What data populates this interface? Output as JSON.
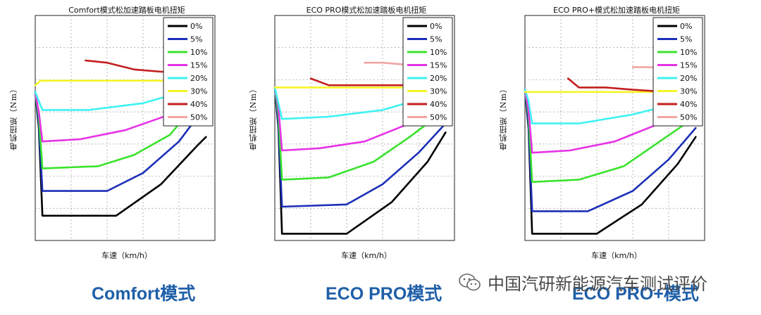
{
  "legend_labels": [
    "0%",
    "5%",
    "10%",
    "15%",
    "20%",
    "30%",
    "40%",
    "50%"
  ],
  "colors": [
    "#000000",
    "#1c2fb8",
    "#39e32c",
    "#e632e6",
    "#3ff2f2",
    "#f5f528",
    "#c41e1e",
    "#f0a6a2"
  ],
  "captions": [
    "Comfort模式",
    "ECO PRO模式",
    "ECO PRO+模式"
  ],
  "watermark": "中国汽研新能源汽车测试评价",
  "chart_data": [
    {
      "type": "line",
      "title": "Comfort模式松加速踏板电机扭矩",
      "xlabel": "车速（km/h）",
      "ylabel": "电机扭矩（Nm）",
      "grid": true,
      "legend": "top-right",
      "xlim": [
        0,
        100
      ],
      "ylim": [
        0,
        100
      ],
      "series": [
        {
          "name": "0%",
          "x": [
            0,
            2,
            4,
            45,
            70,
            90,
            95
          ],
          "y": [
            66,
            50,
            11,
            11,
            25,
            42,
            46
          ]
        },
        {
          "name": "5%",
          "x": [
            0,
            2,
            4,
            40,
            60,
            80,
            95
          ],
          "y": [
            66,
            52,
            22,
            22,
            30,
            44,
            60
          ]
        },
        {
          "name": "10%",
          "x": [
            0,
            2,
            4,
            35,
            55,
            75,
            95
          ],
          "y": [
            66,
            55,
            32,
            33,
            38,
            47,
            66
          ]
        },
        {
          "name": "15%",
          "x": [
            0,
            2,
            4,
            25,
            50,
            75,
            95
          ],
          "y": [
            66,
            57,
            44,
            45,
            49,
            56,
            67
          ]
        },
        {
          "name": "20%",
          "x": [
            0,
            2,
            4,
            30,
            60,
            95
          ],
          "y": [
            66,
            62,
            58,
            58,
            61,
            69
          ]
        },
        {
          "name": "30%",
          "x": [
            0,
            3,
            25,
            60,
            95
          ],
          "y": [
            69,
            71,
            71,
            71,
            71
          ]
        },
        {
          "name": "40%",
          "x": [
            28,
            40,
            55,
            70,
            90,
            94,
            95
          ],
          "y": [
            80,
            79,
            76,
            75,
            75,
            80,
            78
          ]
        },
        {
          "name": "50%",
          "x": [
            75,
            80,
            85,
            90,
            94,
            95
          ],
          "y": [
            92,
            91,
            90,
            89,
            87,
            93
          ]
        }
      ]
    },
    {
      "type": "line",
      "title": "ECO PRO模式松加速踏板电机扭矩",
      "xlabel": "车速（km/h）",
      "ylabel": "电机扭矩（Nm）",
      "grid": true,
      "legend": "top-right",
      "xlim": [
        0,
        100
      ],
      "ylim": [
        0,
        100
      ],
      "series": [
        {
          "name": "0%",
          "x": [
            0,
            2,
            4,
            40,
            65,
            85,
            95
          ],
          "y": [
            68,
            50,
            3,
            3,
            17,
            35,
            48
          ]
        },
        {
          "name": "5%",
          "x": [
            0,
            2,
            4,
            40,
            60,
            80,
            95
          ],
          "y": [
            68,
            52,
            15,
            16,
            25,
            39,
            52
          ]
        },
        {
          "name": "10%",
          "x": [
            0,
            2,
            4,
            30,
            55,
            75,
            95
          ],
          "y": [
            68,
            56,
            27,
            28,
            35,
            46,
            58
          ]
        },
        {
          "name": "15%",
          "x": [
            0,
            2,
            4,
            25,
            50,
            75,
            95
          ],
          "y": [
            68,
            59,
            40,
            41,
            44,
            52,
            63
          ]
        },
        {
          "name": "20%",
          "x": [
            0,
            2,
            4,
            30,
            60,
            95
          ],
          "y": [
            68,
            61,
            54,
            55,
            58,
            66
          ]
        },
        {
          "name": "30%",
          "x": [
            0,
            3,
            30,
            60,
            95
          ],
          "y": [
            68,
            68,
            68,
            68,
            68
          ]
        },
        {
          "name": "40%",
          "x": [
            20,
            30,
            45,
            60,
            80,
            94,
            95
          ],
          "y": [
            72,
            69,
            69,
            69,
            69,
            69,
            90
          ]
        },
        {
          "name": "50%",
          "x": [
            50,
            60,
            75,
            90,
            94,
            95
          ],
          "y": [
            79,
            79,
            78,
            78,
            78,
            95
          ]
        }
      ]
    },
    {
      "type": "line",
      "title": "ECO PRO+模式松加速踏板电机扭矩",
      "xlabel": "车速（km/h）",
      "ylabel": "电机扭矩（Nm）",
      "grid": true,
      "legend": "top-right",
      "xlim": [
        0,
        100
      ],
      "ylim": [
        0,
        100
      ],
      "series": [
        {
          "name": "0%",
          "x": [
            0,
            2,
            4,
            40,
            65,
            85,
            95
          ],
          "y": [
            67,
            50,
            3,
            3,
            16,
            34,
            46
          ]
        },
        {
          "name": "5%",
          "x": [
            0,
            2,
            4,
            35,
            60,
            80,
            95
          ],
          "y": [
            67,
            52,
            13,
            13,
            22,
            36,
            50
          ]
        },
        {
          "name": "10%",
          "x": [
            0,
            2,
            4,
            30,
            55,
            75,
            95
          ],
          "y": [
            67,
            56,
            26,
            27,
            33,
            44,
            55
          ]
        },
        {
          "name": "15%",
          "x": [
            0,
            2,
            4,
            25,
            50,
            75,
            95
          ],
          "y": [
            67,
            58,
            39,
            40,
            44,
            52,
            61
          ]
        },
        {
          "name": "20%",
          "x": [
            0,
            2,
            4,
            30,
            60,
            95
          ],
          "y": [
            67,
            62,
            52,
            52,
            56,
            63
          ]
        },
        {
          "name": "30%",
          "x": [
            0,
            3,
            30,
            60,
            95
          ],
          "y": [
            66,
            66,
            66,
            66,
            66
          ]
        },
        {
          "name": "40%",
          "x": [
            24,
            30,
            45,
            60,
            80,
            94,
            95
          ],
          "y": [
            72,
            68,
            68,
            67,
            66,
            66,
            84
          ]
        },
        {
          "name": "50%",
          "x": [
            60,
            70,
            80,
            90,
            94,
            95
          ],
          "y": [
            77,
            77,
            76,
            76,
            75,
            92
          ]
        }
      ]
    }
  ]
}
